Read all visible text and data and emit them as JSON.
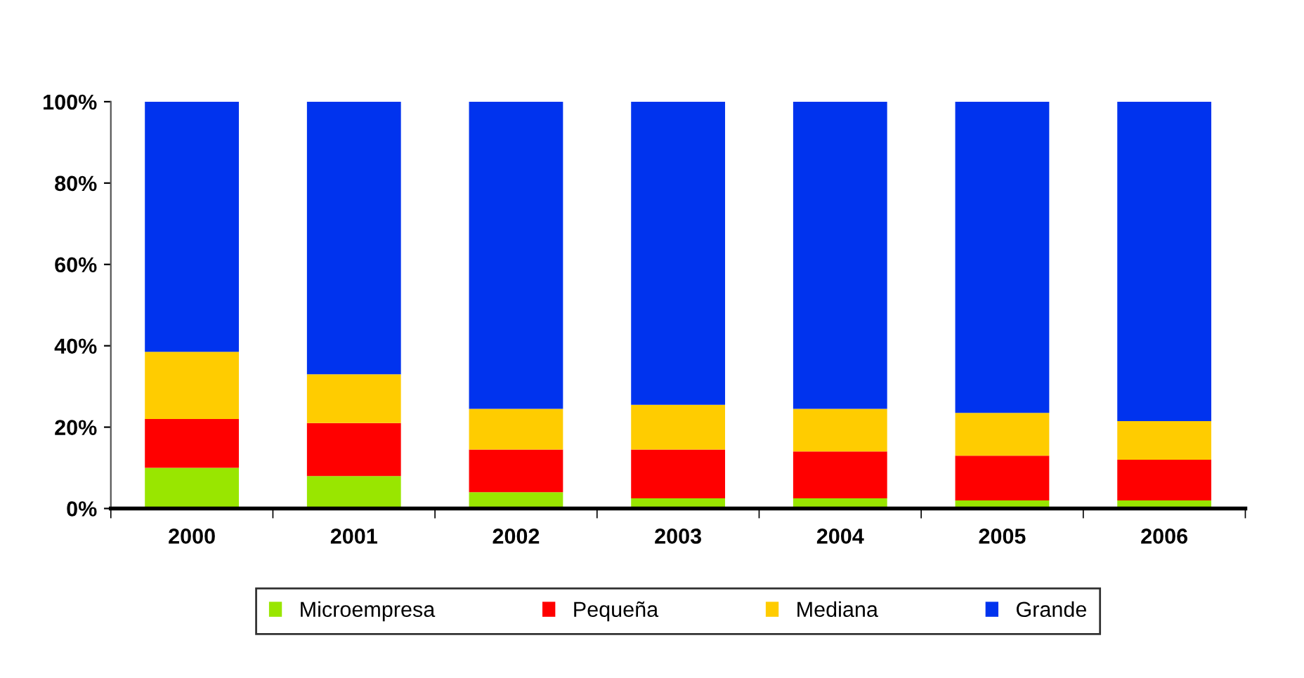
{
  "chart_data": {
    "type": "bar",
    "stacked": true,
    "categories": [
      "2000",
      "2001",
      "2002",
      "2003",
      "2004",
      "2005",
      "2006"
    ],
    "series": [
      {
        "name": "Microempresa",
        "color": "#99e600",
        "values": [
          10,
          8,
          4,
          2.5,
          2.5,
          2,
          2
        ]
      },
      {
        "name": "Pequeña",
        "color": "#ff0000",
        "values": [
          12,
          13,
          10.5,
          12,
          11.5,
          11,
          10
        ]
      },
      {
        "name": "Mediana",
        "color": "#ffcc00",
        "values": [
          16.5,
          12,
          10,
          11,
          10.5,
          10.5,
          9.5
        ]
      },
      {
        "name": "Grande",
        "color": "#0033ee",
        "values": [
          61.5,
          67,
          75.5,
          74.5,
          75.5,
          76.5,
          78.5
        ]
      }
    ],
    "ylim": [
      0,
      100
    ],
    "yticks": [
      {
        "value": 0,
        "label": "0%"
      },
      {
        "value": 20,
        "label": "20%"
      },
      {
        "value": 40,
        "label": "40%"
      },
      {
        "value": 60,
        "label": "60%"
      },
      {
        "value": 80,
        "label": "80%"
      },
      {
        "value": 100,
        "label": "100%"
      }
    ],
    "grid": false,
    "legend": "bottom"
  }
}
